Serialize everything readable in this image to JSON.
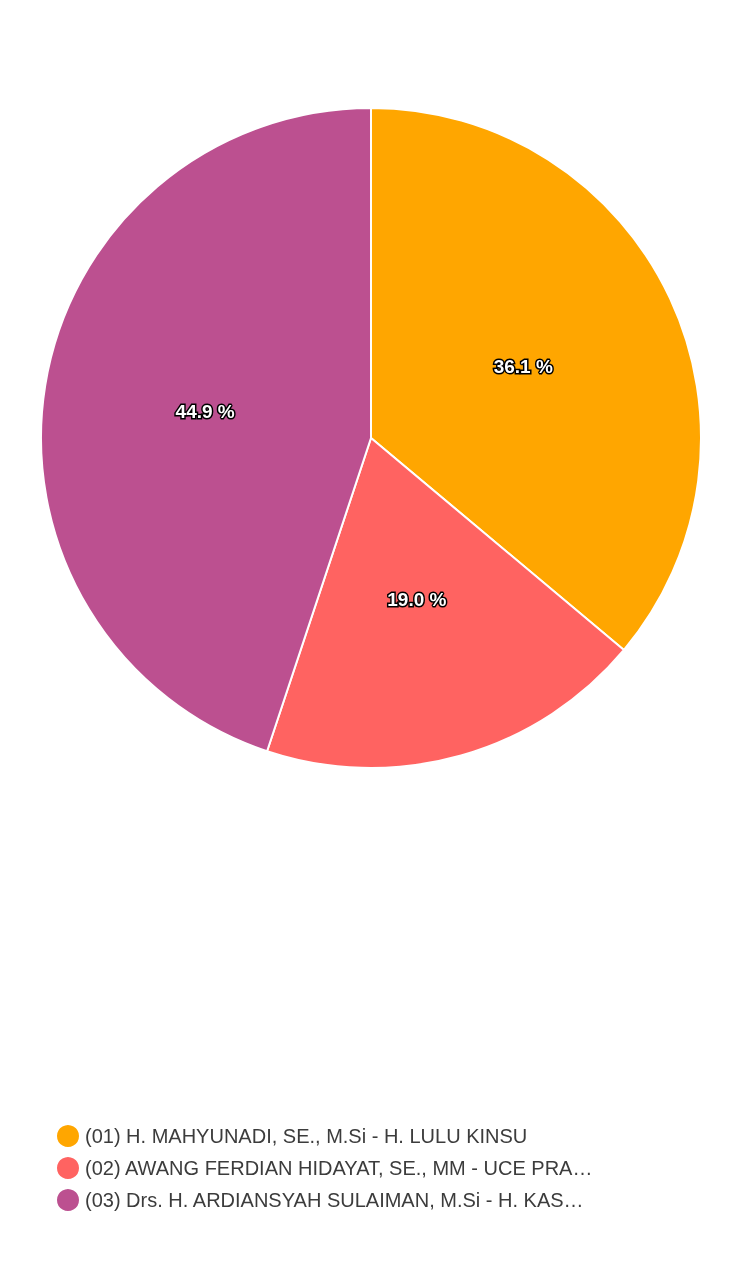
{
  "chart_data": {
    "type": "pie",
    "categories": [
      "(01) H. MAHYUNADI, SE., M.Si - H. LULU KINSU",
      "(02) AWANG FERDIAN HIDAYAT, SE., MM - UCE PRA…",
      "(03) Drs. H. ARDIANSYAH SULAIMAN, M.Si - H. KAS…"
    ],
    "values": [
      36.1,
      19.0,
      44.9
    ],
    "colors": [
      "#ffa600",
      "#ff6361",
      "#bc5090"
    ],
    "value_labels": [
      "36.1 %",
      "19.0 %",
      "44.9 %"
    ],
    "legend": "bottom"
  }
}
